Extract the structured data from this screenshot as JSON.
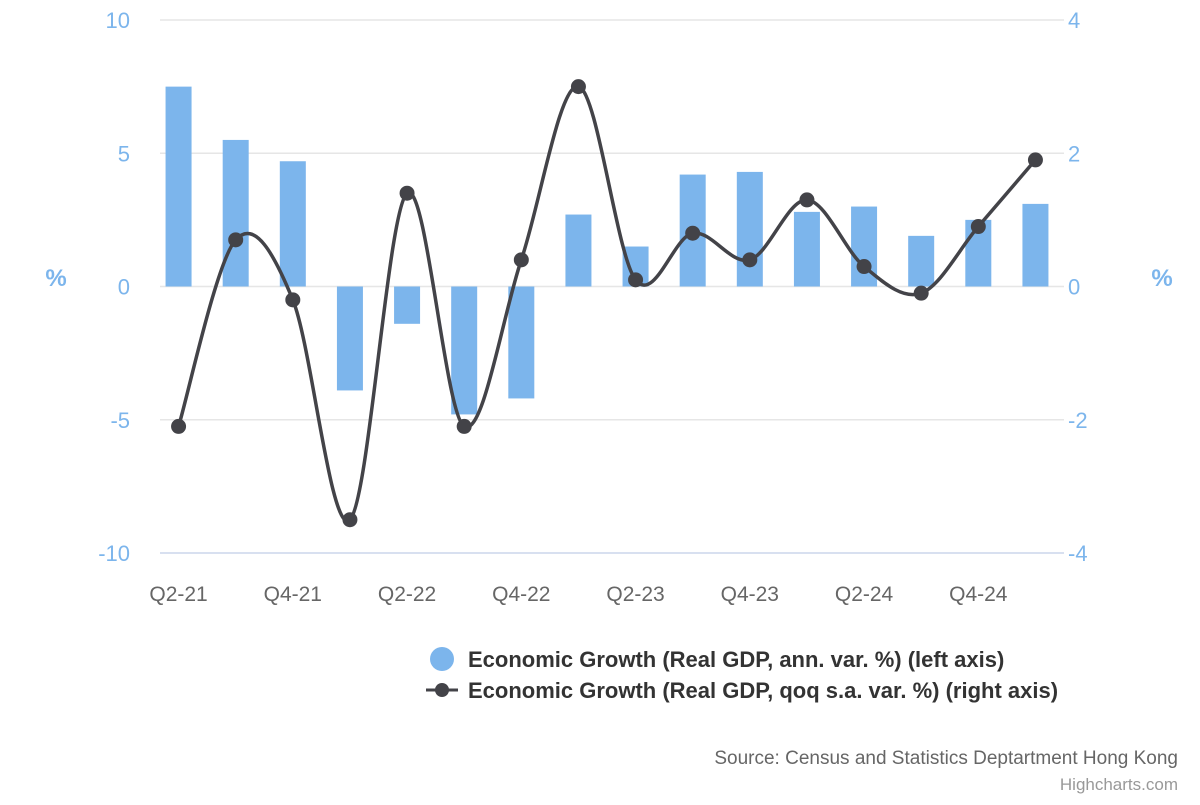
{
  "chart_data": {
    "type": "bar",
    "categories": [
      "Q2-21",
      "Q3-21",
      "Q4-21",
      "Q1-22",
      "Q2-22",
      "Q3-22",
      "Q4-22",
      "Q1-23",
      "Q2-23",
      "Q3-23",
      "Q4-23",
      "Q1-24",
      "Q2-24",
      "Q3-24",
      "Q4-24",
      "Q1-25"
    ],
    "x_tick_labels": [
      "Q2-21",
      "Q4-21",
      "Q2-22",
      "Q4-22",
      "Q2-23",
      "Q4-23",
      "Q2-24",
      "Q4-24"
    ],
    "series": [
      {
        "name": "Economic Growth (Real GDP, ann. var. %) (left axis)",
        "type": "bar",
        "axis": "left",
        "color": "#7cb5ec",
        "values": [
          7.5,
          5.5,
          4.7,
          -3.9,
          -1.4,
          -4.8,
          -4.2,
          2.7,
          1.5,
          4.2,
          4.3,
          2.8,
          3.0,
          1.9,
          2.5,
          3.1
        ]
      },
      {
        "name": "Economic Growth (Real GDP, qoq s.a. var. %) (right axis)",
        "type": "spline",
        "axis": "right",
        "color": "#434348",
        "values": [
          -2.1,
          0.7,
          -0.2,
          -3.5,
          1.4,
          -2.1,
          0.4,
          3.0,
          0.1,
          0.8,
          0.4,
          1.3,
          0.3,
          -0.1,
          0.9,
          1.9
        ]
      }
    ],
    "y_left": {
      "title": "%",
      "ylim": [
        -10,
        10
      ],
      "ticks": [
        "10",
        "5",
        "0",
        "-5",
        "-10"
      ]
    },
    "y_right": {
      "title": "%",
      "ylim": [
        -4,
        4
      ],
      "ticks": [
        "4",
        "2",
        "0",
        "-2",
        "-4"
      ]
    },
    "grid": true,
    "legend_position": "bottom-right"
  },
  "credits": {
    "source": "Source: Census and Statistics Deptartment Hong Kong",
    "site": "Highcharts.com"
  }
}
